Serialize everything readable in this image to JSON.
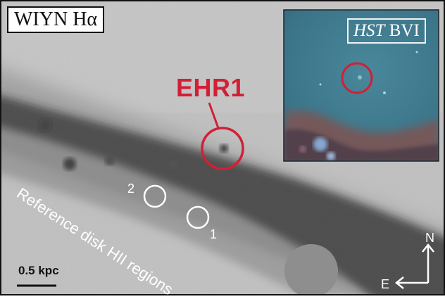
{
  "title": "WIYN Hα",
  "inset_label": {
    "italic": "HST",
    "rest": "BVI"
  },
  "target_label": "EHR1",
  "reference_label": "Reference disk HII regions",
  "region_labels": [
    "2",
    "1"
  ],
  "scale_bar_label": "0.5 kpc",
  "compass": {
    "north": "N",
    "east": "E"
  },
  "colors": {
    "highlight_red": "#d21f35",
    "reference_circle": "#ffffff",
    "background_gray": "#c8c8c8",
    "dust_lane": "#1c1c1c",
    "inset_sky": "#3f7f95"
  }
}
